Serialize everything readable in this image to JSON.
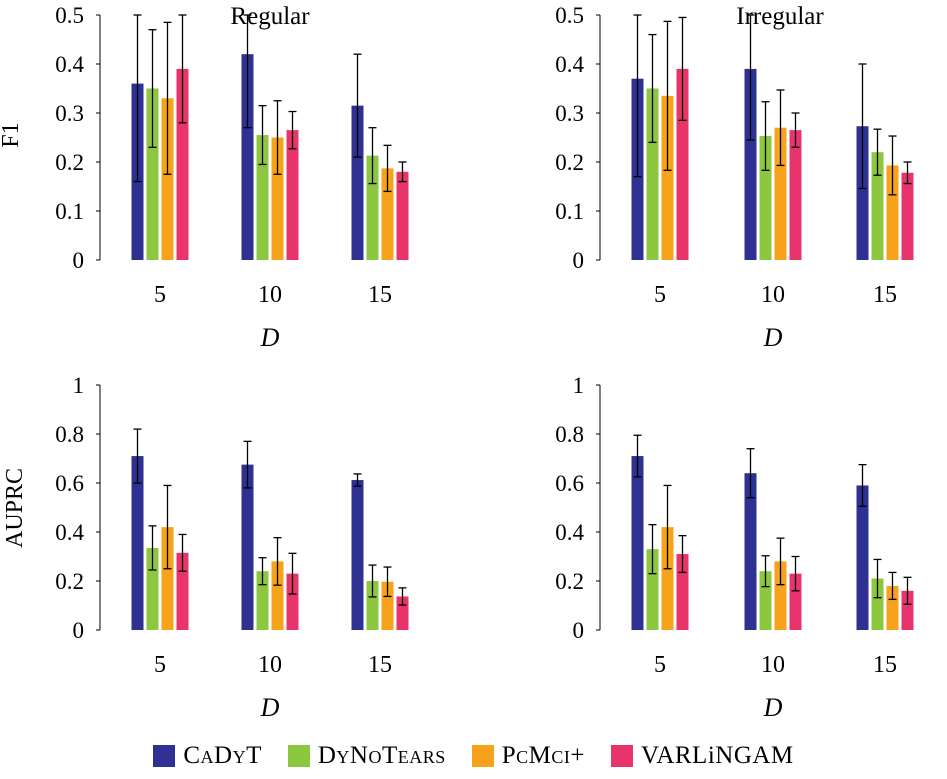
{
  "colors": {
    "CaDyT": "#2E3192",
    "DyNoTears": "#8DC63F",
    "PcMci+": "#F7A21B",
    "VARLiNGAM": "#E8336B"
  },
  "legend": {
    "items": [
      "CaDyT",
      "DyNoTears",
      "PcMci+",
      "VARLiNGAM"
    ]
  },
  "chart_data": [
    {
      "type": "bar",
      "title": "Regular",
      "xlabel": "D",
      "ylabel": "F1",
      "categories": [
        "5",
        "10",
        "15"
      ],
      "ylim": [
        0,
        0.5
      ],
      "yticks": [
        "0",
        "0.1",
        "0.2",
        "0.3",
        "0.4",
        "0.5"
      ],
      "series": [
        {
          "name": "CaDyT",
          "values": [
            0.36,
            0.42,
            0.315
          ],
          "err": [
            0.2,
            0.15,
            0.105
          ]
        },
        {
          "name": "DyNoTears",
          "values": [
            0.35,
            0.255,
            0.213
          ],
          "err": [
            0.12,
            0.06,
            0.057
          ]
        },
        {
          "name": "PcMci+",
          "values": [
            0.33,
            0.25,
            0.187
          ],
          "err": [
            0.155,
            0.075,
            0.047
          ]
        },
        {
          "name": "VARLiNGAM",
          "values": [
            0.39,
            0.265,
            0.18
          ],
          "err": [
            0.11,
            0.038,
            0.02
          ]
        }
      ]
    },
    {
      "type": "bar",
      "title": "Irregular",
      "xlabel": "D",
      "ylabel": "",
      "categories": [
        "5",
        "10",
        "15"
      ],
      "ylim": [
        0,
        0.5
      ],
      "yticks": [
        "0",
        "0.1",
        "0.2",
        "0.3",
        "0.4",
        "0.5"
      ],
      "series": [
        {
          "name": "CaDyT",
          "values": [
            0.37,
            0.39,
            0.273
          ],
          "err": [
            0.2,
            0.145,
            0.127
          ]
        },
        {
          "name": "DyNoTears",
          "values": [
            0.35,
            0.253,
            0.22
          ],
          "err": [
            0.11,
            0.07,
            0.047
          ]
        },
        {
          "name": "PcMci+",
          "values": [
            0.335,
            0.27,
            0.193
          ],
          "err": [
            0.152,
            0.077,
            0.06
          ]
        },
        {
          "name": "VARLiNGAM",
          "values": [
            0.39,
            0.265,
            0.178
          ],
          "err": [
            0.105,
            0.035,
            0.022
          ]
        }
      ]
    },
    {
      "type": "bar",
      "title": "",
      "xlabel": "D",
      "ylabel": "AUPRC",
      "categories": [
        "5",
        "10",
        "15"
      ],
      "ylim": [
        0,
        1
      ],
      "yticks": [
        "0",
        "0.2",
        "0.4",
        "0.6",
        "0.8",
        "1"
      ],
      "series": [
        {
          "name": "CaDyT",
          "values": [
            0.71,
            0.675,
            0.612
          ],
          "err": [
            0.11,
            0.095,
            0.025
          ]
        },
        {
          "name": "DyNoTears",
          "values": [
            0.335,
            0.24,
            0.2
          ],
          "err": [
            0.09,
            0.055,
            0.065
          ]
        },
        {
          "name": "PcMci+",
          "values": [
            0.42,
            0.28,
            0.197
          ],
          "err": [
            0.17,
            0.097,
            0.06
          ]
        },
        {
          "name": "VARLiNGAM",
          "values": [
            0.315,
            0.23,
            0.137
          ],
          "err": [
            0.075,
            0.083,
            0.035
          ]
        }
      ]
    },
    {
      "type": "bar",
      "title": "",
      "xlabel": "D",
      "ylabel": "",
      "categories": [
        "5",
        "10",
        "15"
      ],
      "ylim": [
        0,
        1
      ],
      "yticks": [
        "0",
        "0.2",
        "0.4",
        "0.6",
        "0.8",
        "1"
      ],
      "series": [
        {
          "name": "CaDyT",
          "values": [
            0.71,
            0.64,
            0.59
          ],
          "err": [
            0.085,
            0.1,
            0.085
          ]
        },
        {
          "name": "DyNoTears",
          "values": [
            0.33,
            0.24,
            0.21
          ],
          "err": [
            0.1,
            0.063,
            0.078
          ]
        },
        {
          "name": "PcMci+",
          "values": [
            0.42,
            0.28,
            0.18
          ],
          "err": [
            0.17,
            0.095,
            0.055
          ]
        },
        {
          "name": "VARLiNGAM",
          "values": [
            0.31,
            0.23,
            0.16
          ],
          "err": [
            0.075,
            0.07,
            0.055
          ]
        }
      ]
    }
  ]
}
